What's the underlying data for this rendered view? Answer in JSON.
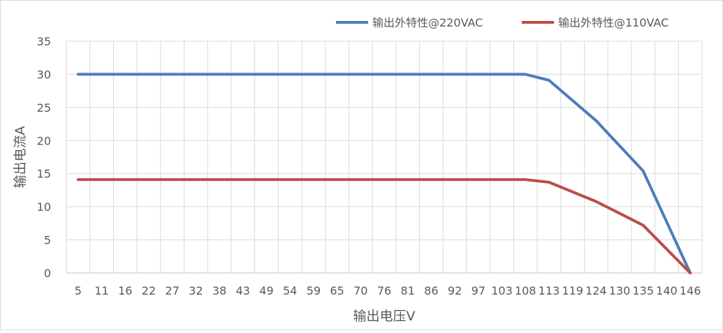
{
  "chart_data": {
    "type": "line",
    "title": "",
    "xlabel": "输出电压V",
    "ylabel": "输出电流A",
    "categories": [
      "5",
      "11",
      "16",
      "22",
      "27",
      "32",
      "38",
      "43",
      "49",
      "54",
      "59",
      "65",
      "70",
      "76",
      "81",
      "86",
      "92",
      "97",
      "103",
      "108",
      "113",
      "119",
      "124",
      "130",
      "135",
      "140",
      "146"
    ],
    "ylim": [
      0,
      35
    ],
    "yticks": [
      0,
      5,
      10,
      15,
      20,
      25,
      30,
      35
    ],
    "grid": true,
    "legend_position": "top-right",
    "series": [
      {
        "name": "输出外特性@220VAC",
        "color": "#4a7ebb",
        "points": [
          {
            "x": "5",
            "y": 30
          },
          {
            "x": "108",
            "y": 30
          },
          {
            "x": "113",
            "y": 29.1
          },
          {
            "x": "124",
            "y": 23
          },
          {
            "x": "135",
            "y": 15.4
          },
          {
            "x": "146",
            "y": 0
          }
        ]
      },
      {
        "name": "输出外特性@110VAC",
        "color": "#be4b48",
        "points": [
          {
            "x": "5",
            "y": 14.1
          },
          {
            "x": "108",
            "y": 14.1
          },
          {
            "x": "113",
            "y": 13.7
          },
          {
            "x": "124",
            "y": 10.8
          },
          {
            "x": "135",
            "y": 7.2
          },
          {
            "x": "146",
            "y": 0
          }
        ]
      }
    ]
  }
}
